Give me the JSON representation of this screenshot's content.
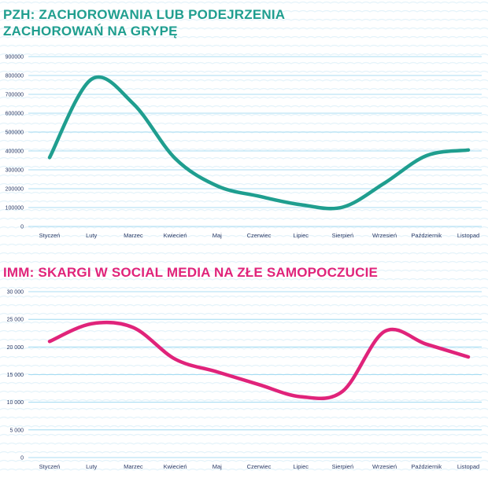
{
  "colors": {
    "teal": "#1f9e8f",
    "pink": "#e0237a",
    "grid": "#8fd3ef",
    "tick_text": "#2a3a66",
    "background_waves": "#e4f3fa"
  },
  "chart_data": [
    {
      "type": "line",
      "title": "PZH: ZACHOROWANIA LUB PODEJRZENIA ZACHOROWAŃ NA GRYPĘ",
      "categories": [
        "Styczeń",
        "Luty",
        "Marzec",
        "Kwiecień",
        "Maj",
        "Czerwiec",
        "Lipiec",
        "Sierpień",
        "Wrzesień",
        "Październik",
        "Listopad"
      ],
      "series": [
        {
          "values": [
            365000,
            780000,
            650000,
            360000,
            215000,
            160000,
            115000,
            102000,
            230000,
            375000,
            405000
          ]
        }
      ],
      "yticks": [
        0,
        100000,
        200000,
        300000,
        400000,
        500000,
        600000,
        700000,
        800000,
        900000
      ],
      "ylim": [
        0,
        900000
      ],
      "grid": true,
      "xlabel": "",
      "ylabel": ""
    },
    {
      "type": "line",
      "title": "IMM: SKARGI W SOCIAL MEDIA NA ZŁE SAMOPOCZUCIE",
      "categories": [
        "Styczeń",
        "Luty",
        "Marzec",
        "Kwiecień",
        "Maj",
        "Czerwiec",
        "Lipiec",
        "Sierpień",
        "Wrzesień",
        "Październik",
        "Listopad"
      ],
      "series": [
        {
          "values": [
            21000,
            24200,
            23500,
            17800,
            15500,
            13200,
            11000,
            12000,
            22800,
            20500,
            18200
          ]
        }
      ],
      "yticks": [
        "0",
        "5 000",
        "10 000",
        "15 000",
        "20 000",
        "25 000",
        "30 000"
      ],
      "ylim": [
        0,
        30000
      ],
      "grid": true,
      "xlabel": "",
      "ylabel": ""
    }
  ]
}
